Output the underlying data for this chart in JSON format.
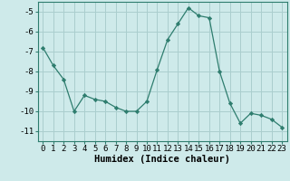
{
  "x": [
    0,
    1,
    2,
    3,
    4,
    5,
    6,
    7,
    8,
    9,
    10,
    11,
    12,
    13,
    14,
    15,
    16,
    17,
    18,
    19,
    20,
    21,
    22,
    23
  ],
  "y": [
    -6.8,
    -7.7,
    -8.4,
    -10.0,
    -9.2,
    -9.4,
    -9.5,
    -9.8,
    -10.0,
    -10.0,
    -9.5,
    -7.9,
    -6.4,
    -5.6,
    -4.8,
    -5.2,
    -5.3,
    -8.0,
    -9.6,
    -10.6,
    -10.1,
    -10.2,
    -10.4,
    -10.8
  ],
  "line_color": "#2e7d6e",
  "marker": "D",
  "marker_size": 2.2,
  "bg_color": "#ceeaea",
  "grid_color": "#aacece",
  "xlabel": "Humidex (Indice chaleur)",
  "ylim": [
    -11.5,
    -4.5
  ],
  "xlim": [
    -0.5,
    23.5
  ],
  "yticks": [
    -5,
    -6,
    -7,
    -8,
    -9,
    -10,
    -11
  ],
  "xticks": [
    0,
    1,
    2,
    3,
    4,
    5,
    6,
    7,
    8,
    9,
    10,
    11,
    12,
    13,
    14,
    15,
    16,
    17,
    18,
    19,
    20,
    21,
    22,
    23
  ],
  "tick_label_fontsize": 6.5,
  "xlabel_fontsize": 7.5
}
